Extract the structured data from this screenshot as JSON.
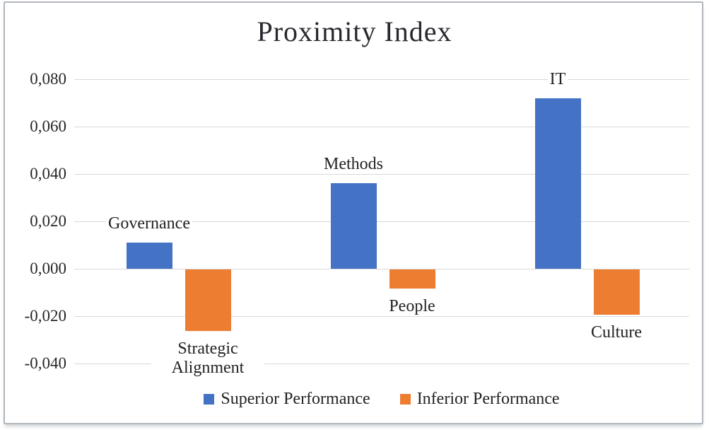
{
  "chart_data": {
    "type": "bar",
    "title": "Proximity Index",
    "xlabel": "",
    "ylabel": "",
    "grid": true,
    "legend_position": "bottom",
    "decimal_separator": "comma",
    "ylim": [
      -0.052,
      0.088
    ],
    "y_ticks": [
      {
        "value": 0.08,
        "label": "0,080"
      },
      {
        "value": 0.06,
        "label": "0,060"
      },
      {
        "value": 0.04,
        "label": "0,040"
      },
      {
        "value": 0.02,
        "label": "0,020"
      },
      {
        "value": 0.0,
        "label": "0,000"
      },
      {
        "value": -0.02,
        "label": "-0,020"
      },
      {
        "value": -0.04,
        "label": "-0,040"
      }
    ],
    "categories": [
      "Governance",
      "Strategic Alignment",
      "Methods",
      "People",
      "IT",
      "Culture"
    ],
    "series": [
      {
        "name": "Superior Performance",
        "color": "#4472C4",
        "points": [
          {
            "category": "Governance",
            "value": 0.011
          },
          {
            "category": "Methods",
            "value": 0.036
          },
          {
            "category": "IT",
            "value": 0.072
          }
        ]
      },
      {
        "name": "Inferior Performance",
        "color": "#ED7D31",
        "points": [
          {
            "category": "Strategic Alignment",
            "value": -0.026
          },
          {
            "category": "People",
            "value": -0.008
          },
          {
            "category": "Culture",
            "value": -0.019
          }
        ]
      }
    ]
  }
}
